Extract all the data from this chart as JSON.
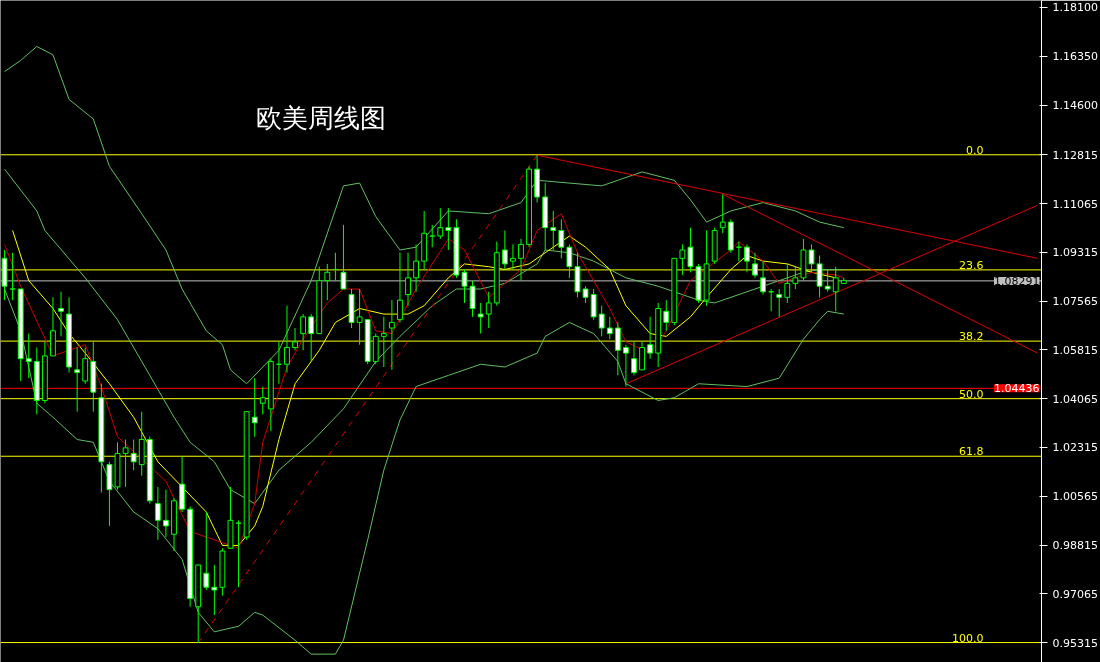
{
  "chart_data": {
    "type": "candlestick",
    "title": "欧美周线图",
    "color": "#00ff00",
    "categories": [
      null,
      null,
      null,
      null,
      null,
      null,
      null,
      null,
      null,
      null,
      null,
      null,
      null,
      null,
      null,
      null,
      null,
      null,
      null,
      null,
      null,
      null,
      null,
      null,
      null,
      null,
      null,
      null,
      null,
      null,
      null,
      null,
      null,
      null,
      null,
      null,
      null,
      null,
      null,
      null,
      null,
      null,
      null,
      null,
      null,
      null,
      null,
      null,
      null,
      null,
      null,
      null,
      null,
      null,
      null,
      null,
      null,
      null,
      null,
      null,
      null,
      null,
      null,
      null,
      null,
      null,
      null,
      null,
      null,
      null,
      null,
      null,
      null,
      null,
      null,
      null,
      null,
      null,
      null,
      null,
      null,
      null,
      null,
      null,
      null,
      null,
      null,
      null,
      null,
      null,
      null,
      null,
      null,
      null,
      null,
      null,
      null,
      null,
      null,
      null,
      null,
      null,
      null,
      null,
      null,
      null,
      null,
      null,
      null,
      null,
      null,
      null,
      null,
      null,
      null,
      null,
      null,
      null,
      null,
      null,
      null,
      null,
      null,
      null,
      null,
      null,
      null,
      null,
      null
    ],
    "ohlc": [
      [
        1.091,
        1.094,
        1.076,
        1.081
      ],
      [
        1.08,
        1.093,
        1.076,
        1.08
      ],
      [
        1.08,
        1.08,
        1.047,
        1.055
      ],
      [
        1.055,
        1.064,
        1.048,
        1.054
      ],
      [
        1.054,
        1.059,
        1.035,
        1.04
      ],
      [
        1.04,
        1.061,
        1.039,
        1.056
      ],
      [
        1.056,
        1.077,
        1.056,
        1.065
      ],
      [
        1.073,
        1.079,
        1.063,
        1.072
      ],
      [
        1.071,
        1.077,
        1.05,
        1.052
      ],
      [
        1.051,
        1.059,
        1.036,
        1.05
      ],
      [
        1.047,
        1.059,
        1.046,
        1.055
      ],
      [
        1.054,
        1.061,
        1.036,
        1.043
      ],
      [
        1.041,
        1.046,
        1.007,
        1.018
      ],
      [
        1.017,
        1.018,
        0.995,
        1.008
      ],
      [
        1.009,
        1.025,
        1.008,
        1.021
      ],
      [
        1.021,
        1.026,
        1.009,
        1.023
      ],
      [
        1.021,
        1.026,
        1.015,
        1.018
      ],
      [
        1.017,
        1.036,
        1.013,
        1.026
      ],
      [
        1.026,
        1.027,
        1.003,
        1.004
      ],
      [
        1.003,
        1.009,
        0.99,
        0.997
      ],
      [
        0.997,
        1.008,
        0.991,
        0.995
      ],
      [
        0.992,
        1.005,
        0.986,
        1.004
      ],
      [
        1.01,
        1.02,
        1.0,
        1.001
      ],
      [
        1.001,
        1.002,
        0.966,
        0.969
      ],
      [
        0.966,
        0.981,
        0.953,
        0.981
      ],
      [
        0.978,
        1.0,
        0.972,
        0.973
      ],
      [
        0.973,
        0.981,
        0.963,
        0.972
      ],
      [
        0.973,
        0.987,
        0.97,
        0.986
      ],
      [
        0.987,
        1.009,
        0.987,
        0.997
      ],
      [
        0.996,
        0.997,
        0.973,
        0.996
      ],
      [
        0.991,
        1.036,
        0.99,
        1.036
      ],
      [
        1.034,
        1.048,
        1.027,
        1.032
      ],
      [
        1.039,
        1.045,
        1.035,
        1.041
      ],
      [
        1.037,
        1.055,
        1.029,
        1.054
      ],
      [
        1.053,
        1.061,
        1.046,
        1.053
      ],
      [
        1.053,
        1.074,
        1.05,
        1.059
      ],
      [
        1.059,
        1.066,
        1.058,
        1.061
      ],
      [
        1.064,
        1.071,
        1.058,
        1.07
      ],
      [
        1.07,
        1.071,
        1.054,
        1.064
      ],
      [
        1.064,
        1.088,
        1.064,
        1.083
      ],
      [
        1.083,
        1.089,
        1.076,
        1.086
      ],
      [
        1.087,
        1.093,
        1.083,
        1.087
      ],
      [
        1.086,
        1.103,
        1.08,
        1.08
      ],
      [
        1.078,
        1.08,
        1.066,
        1.068
      ],
      [
        1.068,
        1.08,
        1.06,
        1.07
      ],
      [
        1.069,
        1.069,
        1.053,
        1.054
      ],
      [
        1.054,
        1.064,
        1.053,
        1.063
      ],
      [
        1.063,
        1.07,
        1.052,
        1.064
      ],
      [
        1.066,
        1.076,
        1.051,
        1.068
      ],
      [
        1.069,
        1.093,
        1.068,
        1.076
      ],
      [
        1.078,
        1.093,
        1.074,
        1.084
      ],
      [
        1.084,
        1.096,
        1.079,
        1.09
      ],
      [
        1.09,
        1.108,
        1.087,
        1.1
      ],
      [
        1.099,
        1.103,
        1.095,
        1.099
      ],
      [
        1.099,
        1.109,
        1.098,
        1.102
      ],
      [
        1.102,
        1.109,
        1.094,
        1.101
      ],
      [
        1.102,
        1.105,
        1.084,
        1.085
      ],
      [
        1.086,
        1.087,
        1.075,
        1.081
      ],
      [
        1.081,
        1.083,
        1.07,
        1.073
      ],
      [
        1.071,
        1.075,
        1.064,
        1.07
      ],
      [
        1.071,
        1.079,
        1.066,
        1.075
      ],
      [
        1.075,
        1.097,
        1.074,
        1.093
      ],
      [
        1.094,
        1.101,
        1.087,
        1.089
      ],
      [
        1.09,
        1.096,
        1.087,
        1.091
      ],
      [
        1.091,
        1.098,
        1.083,
        1.096
      ],
      [
        1.096,
        1.124,
        1.095,
        1.123
      ],
      [
        1.123,
        1.128,
        1.111,
        1.113
      ],
      [
        1.113,
        1.118,
        1.094,
        1.102
      ],
      [
        1.102,
        1.108,
        1.094,
        1.101
      ],
      [
        1.101,
        1.105,
        1.091,
        1.095
      ],
      [
        1.095,
        1.096,
        1.084,
        1.088
      ],
      [
        1.088,
        1.093,
        1.077,
        1.079
      ],
      [
        1.08,
        1.081,
        1.075,
        1.077
      ],
      [
        1.078,
        1.08,
        1.069,
        1.07
      ],
      [
        1.071,
        1.074,
        1.063,
        1.066
      ],
      [
        1.066,
        1.07,
        1.062,
        1.064
      ],
      [
        1.066,
        1.068,
        1.049,
        1.058
      ],
      [
        1.059,
        1.06,
        1.045,
        1.057
      ],
      [
        1.055,
        1.061,
        1.049,
        1.05
      ],
      [
        1.051,
        1.061,
        1.051,
        1.059
      ],
      [
        1.06,
        1.07,
        1.055,
        1.057
      ],
      [
        1.057,
        1.075,
        1.052,
        1.073
      ],
      [
        1.072,
        1.076,
        1.065,
        1.068
      ],
      [
        1.068,
        1.091,
        1.067,
        1.091
      ],
      [
        1.091,
        1.096,
        1.085,
        1.094
      ],
      [
        1.095,
        1.102,
        1.086,
        1.088
      ],
      [
        1.088,
        1.089,
        1.075,
        1.076
      ],
      [
        1.076,
        1.101,
        1.074,
        1.089
      ],
      [
        1.09,
        1.102,
        1.089,
        1.101
      ],
      [
        1.102,
        1.114,
        1.1,
        1.104
      ],
      [
        1.104,
        1.105,
        1.093,
        1.094
      ],
      [
        1.095,
        1.097,
        1.09,
        1.095
      ],
      [
        1.095,
        1.096,
        1.086,
        1.09
      ],
      [
        1.089,
        1.093,
        1.084,
        1.085
      ],
      [
        1.084,
        1.09,
        1.078,
        1.079
      ],
      [
        1.079,
        1.08,
        1.072,
        1.079
      ],
      [
        1.078,
        1.08,
        1.07,
        1.077
      ],
      [
        1.077,
        1.089,
        1.075,
        1.082
      ],
      [
        1.082,
        1.088,
        1.08,
        1.084
      ],
      [
        1.084,
        1.098,
        1.083,
        1.094
      ],
      [
        1.094,
        1.096,
        1.086,
        1.089
      ],
      [
        1.089,
        1.092,
        1.077,
        1.081
      ],
      [
        1.081,
        1.087,
        1.079,
        1.08
      ],
      [
        1.079,
        1.088,
        1.072,
        1.084
      ],
      [
        1.082,
        1.084,
        1.082,
        1.083
      ],
      null,
      null,
      null,
      null,
      null,
      null,
      null,
      null,
      null,
      null,
      null,
      null,
      null,
      null,
      null,
      null,
      null,
      null,
      null,
      null,
      null,
      null,
      null,
      null
    ],
    "series": [
      {
        "type": "line",
        "color": "#5fbf5f",
        "values": [
          1.158,
          null,
          1.162,
          null,
          1.167,
          null,
          1.164,
          null,
          1.148,
          null,
          null,
          1.141,
          null,
          1.124,
          null,
          null,
          null,
          1.107,
          null,
          null,
          1.094,
          null,
          1.08,
          null,
          null,
          1.065,
          null,
          1.06,
          1.051,
          null,
          1.046,
          null,
          null,
          null,
          1.058,
          null,
          null,
          null,
          1.083,
          null,
          null,
          null,
          1.117,
          null,
          1.118,
          null,
          1.106,
          null,
          null,
          1.094,
          null,
          1.095,
          null,
          null,
          null,
          1.108,
          null,
          null,
          null,
          null,
          1.107,
          null,
          null,
          null,
          1.111,
          null,
          1.119,
          null,
          null,
          null,
          null,
          null,
          null,
          null,
          1.117,
          null,
          null,
          null,
          null,
          1.122,
          null,
          null,
          null,
          1.119,
          null,
          1.112,
          null,
          1.104,
          null,
          null,
          1.108,
          null,
          null,
          null,
          1.111,
          null,
          null,
          null,
          1.108,
          null,
          null,
          1.104,
          null,
          null,
          1.102,
          null,
          null,
          null,
          null,
          null,
          null,
          null,
          null,
          null,
          null,
          null,
          null,
          null,
          null,
          null,
          null,
          null,
          null,
          null,
          null,
          null,
          null,
          null,
          null
        ]
      },
      {
        "type": "line",
        "color": "#5fbf5f",
        "values": [
          1.123,
          null,
          null,
          null,
          1.108,
          1.101,
          null,
          null,
          null,
          null,
          1.084,
          null,
          null,
          null,
          1.069,
          null,
          null,
          1.054,
          null,
          null,
          null,
          1.034,
          null,
          1.025,
          null,
          null,
          1.018,
          null,
          1.008,
          null,
          null,
          1.003,
          null,
          null,
          1.015,
          null,
          null,
          null,
          1.025,
          null,
          null,
          null,
          1.037,
          null,
          null,
          null,
          1.054,
          null,
          null,
          1.063,
          null,
          null,
          null,
          1.074,
          null,
          null,
          1.08,
          null,
          null,
          1.08,
          null,
          null,
          1.082,
          null,
          null,
          null,
          1.089,
          1.094,
          null,
          null,
          1.093,
          null,
          null,
          1.09,
          null,
          null,
          null,
          1.084,
          null,
          null,
          null,
          1.081,
          null,
          null,
          null,
          null,
          1.076,
          null,
          1.075,
          null,
          null,
          null,
          1.079,
          null,
          null,
          null,
          1.083,
          null,
          null,
          1.086,
          null,
          1.087,
          null,
          null,
          1.087,
          null,
          null,
          null,
          null,
          null,
          null,
          null,
          null,
          null,
          null,
          null,
          null,
          null,
          null,
          null,
          null,
          null,
          null,
          null,
          null,
          null,
          null,
          null,
          null
        ]
      },
      {
        "type": "line",
        "color": "#5fbf5f",
        "values": [
          1.08,
          null,
          1.065,
          null,
          1.039,
          null,
          1.034,
          null,
          null,
          1.026,
          null,
          1.025,
          null,
          1.011,
          null,
          null,
          1.0,
          null,
          null,
          0.994,
          null,
          null,
          0.983,
          null,
          0.964,
          null,
          0.957,
          null,
          null,
          0.959,
          null,
          0.964,
          0.963,
          null,
          null,
          null,
          0.954,
          null,
          0.949,
          null,
          null,
          0.949,
          0.954,
          null,
          null,
          0.99,
          null,
          1.015,
          null,
          1.033,
          null,
          1.045,
          null,
          null,
          null,
          1.049,
          null,
          null,
          null,
          1.053,
          null,
          null,
          1.052,
          null,
          null,
          null,
          1.057,
          1.063,
          null,
          null,
          1.068,
          null,
          null,
          1.064,
          null,
          null,
          1.054,
          1.046,
          null,
          null,
          null,
          1.04,
          null,
          1.041,
          null,
          null,
          1.046,
          null,
          null,
          null,
          null,
          null,
          1.045,
          null,
          null,
          null,
          1.048,
          null,
          null,
          1.062,
          null,
          1.069,
          1.072,
          null,
          1.071,
          null,
          null,
          null,
          null,
          null,
          null,
          null,
          null,
          null,
          null,
          null,
          null,
          null,
          null,
          null,
          null,
          null,
          null,
          null,
          null,
          null,
          null,
          null,
          null
        ]
      },
      {
        "type": "line",
        "color": "#ffff00",
        "values": [
          null,
          1.101,
          null,
          1.083,
          null,
          null,
          1.073,
          null,
          1.064,
          null,
          1.057,
          null,
          null,
          1.046,
          null,
          null,
          1.034,
          null,
          null,
          1.018,
          null,
          null,
          1.009,
          null,
          null,
          1.0,
          null,
          0.988,
          null,
          0.988,
          null,
          0.995,
          1.002,
          null,
          1.026,
          null,
          1.046,
          null,
          null,
          1.058,
          null,
          1.068,
          null,
          null,
          1.073,
          null,
          null,
          1.071,
          null,
          null,
          1.071,
          null,
          1.074,
          null,
          null,
          1.084,
          null,
          1.089,
          null,
          null,
          1.088,
          null,
          1.087,
          null,
          null,
          1.089,
          null,
          1.093,
          null,
          null,
          1.099,
          null,
          1.095,
          null,
          null,
          1.087,
          null,
          1.074,
          null,
          null,
          1.064,
          null,
          1.063,
          null,
          null,
          1.07,
          null,
          1.077,
          null,
          null,
          1.087,
          null,
          1.092,
          null,
          1.09,
          null,
          null,
          1.089,
          null,
          null,
          1.086,
          null,
          null,
          1.084,
          null,
          null,
          null,
          null,
          null,
          null,
          null,
          null,
          null,
          null,
          null,
          null,
          null,
          null,
          null,
          null,
          null,
          null,
          null,
          null,
          null,
          null,
          null,
          null,
          null
        ]
      },
      {
        "type": "line",
        "color": "#cc0000",
        "values": [
          1.096,
          null,
          1.081,
          null,
          null,
          null,
          1.056,
          null,
          null,
          null,
          1.06,
          null,
          1.045,
          null,
          1.027,
          null,
          null,
          1.019,
          null,
          null,
          1.011,
          null,
          null,
          0.993,
          null,
          null,
          null,
          null,
          null,
          0.987,
          null,
          1.003,
          1.025,
          null,
          null,
          1.052,
          null,
          1.062,
          null,
          null,
          1.075,
          null,
          1.08,
          null,
          1.08,
          null,
          1.065,
          null,
          1.064,
          null,
          null,
          1.08,
          null,
          null,
          null,
          1.098,
          null,
          1.094,
          null,
          null,
          1.077,
          null,
          1.082,
          null,
          1.087,
          null,
          1.101,
          null,
          null,
          1.107,
          null,
          1.093,
          null,
          null,
          null,
          1.073,
          null,
          1.061,
          null,
          null,
          1.057,
          null,
          1.065,
          null,
          null,
          1.083,
          null,
          null,
          null,
          null,
          1.094,
          1.097,
          null,
          null,
          1.09,
          null,
          1.082,
          null,
          null,
          null,
          1.086,
          null,
          null,
          1.085,
          1.084,
          null,
          null,
          null,
          null,
          null,
          null,
          null,
          null,
          null,
          null,
          null,
          null,
          null,
          null,
          null,
          null,
          null,
          null,
          null,
          null,
          null,
          null,
          null,
          null
        ]
      },
      {
        "type": "line",
        "color": "#dd0000",
        "line_style": "dashed",
        "values": [
          null,
          null,
          null,
          null,
          null,
          null,
          null,
          null,
          null,
          null,
          null,
          null,
          null,
          null,
          null,
          null,
          null,
          null,
          null,
          null,
          null,
          null,
          null,
          null,
          0.953,
          null,
          null,
          null,
          null,
          null,
          null,
          null,
          null,
          null,
          null,
          null,
          null,
          null,
          null,
          null,
          null,
          null,
          null,
          null,
          null,
          null,
          null,
          null,
          null,
          null,
          null,
          null,
          null,
          null,
          null,
          null,
          null,
          null,
          null,
          null,
          null,
          null,
          null,
          null,
          null,
          null,
          1.128,
          null,
          null,
          null,
          null,
          null,
          null,
          null,
          null,
          null,
          null,
          null,
          null,
          null,
          null,
          null,
          null,
          null,
          null,
          null,
          null,
          null,
          null,
          null,
          null,
          null,
          null,
          null,
          null,
          null,
          null,
          null,
          null,
          null,
          null,
          null,
          null,
          null,
          null,
          null,
          null,
          null,
          null,
          null,
          null,
          null,
          null,
          null,
          null,
          null,
          null,
          null,
          null,
          null,
          null,
          null,
          null,
          null,
          null,
          null,
          null,
          null,
          null
        ]
      },
      {
        "type": "line",
        "color": "#dd0000",
        "values": [
          null,
          null,
          null,
          null,
          null,
          null,
          null,
          null,
          null,
          null,
          null,
          null,
          null,
          null,
          null,
          null,
          null,
          null,
          null,
          null,
          null,
          null,
          null,
          null,
          null,
          null,
          null,
          null,
          null,
          null,
          null,
          null,
          null,
          null,
          null,
          null,
          null,
          null,
          null,
          null,
          null,
          null,
          null,
          null,
          null,
          null,
          null,
          null,
          null,
          null,
          null,
          null,
          null,
          null,
          null,
          null,
          null,
          null,
          null,
          null,
          null,
          null,
          null,
          null,
          null,
          null,
          1.128,
          null,
          null,
          null,
          null,
          null,
          null,
          null,
          null,
          null,
          null,
          null,
          null,
          null,
          null,
          null,
          null,
          null,
          null,
          null,
          null,
          null,
          null,
          null,
          null,
          null,
          null,
          null,
          null,
          null,
          null,
          null,
          null,
          null,
          null,
          null,
          null,
          null,
          null,
          null,
          null,
          null,
          null,
          null,
          null,
          null,
          null,
          null,
          null,
          null,
          null,
          null,
          null,
          null,
          null,
          null,
          null,
          null,
          null,
          null,
          null,
          null,
          1.091
        ]
      },
      {
        "type": "line",
        "color": "#dd0000",
        "values": [
          null,
          null,
          null,
          null,
          null,
          null,
          null,
          null,
          null,
          null,
          null,
          null,
          null,
          null,
          null,
          null,
          null,
          null,
          null,
          null,
          null,
          null,
          null,
          null,
          null,
          null,
          null,
          null,
          null,
          null,
          null,
          null,
          null,
          null,
          null,
          null,
          null,
          null,
          null,
          null,
          null,
          null,
          null,
          null,
          null,
          null,
          null,
          null,
          null,
          null,
          null,
          null,
          null,
          null,
          null,
          null,
          null,
          null,
          null,
          null,
          null,
          null,
          null,
          null,
          null,
          null,
          null,
          null,
          null,
          null,
          null,
          null,
          null,
          null,
          null,
          null,
          null,
          null,
          null,
          null,
          null,
          null,
          null,
          null,
          null,
          null,
          null,
          null,
          null,
          1.114,
          null,
          null,
          null,
          null,
          null,
          null,
          null,
          null,
          null,
          null,
          null,
          null,
          null,
          null,
          null,
          null,
          null,
          null,
          null,
          null,
          null,
          null,
          null,
          null,
          null,
          null,
          null,
          null,
          null,
          null,
          null,
          null,
          null,
          null,
          null,
          null,
          null,
          null,
          1.057
        ]
      },
      {
        "type": "line",
        "color": "#dd0000",
        "values": [
          null,
          null,
          null,
          null,
          null,
          null,
          null,
          null,
          null,
          null,
          null,
          null,
          null,
          null,
          null,
          null,
          null,
          null,
          null,
          null,
          null,
          null,
          null,
          null,
          null,
          null,
          null,
          null,
          null,
          null,
          null,
          null,
          null,
          null,
          null,
          null,
          null,
          null,
          null,
          null,
          null,
          null,
          null,
          null,
          null,
          null,
          null,
          null,
          null,
          null,
          null,
          null,
          null,
          null,
          null,
          null,
          null,
          null,
          null,
          null,
          null,
          null,
          null,
          null,
          null,
          null,
          null,
          null,
          null,
          null,
          null,
          null,
          null,
          null,
          null,
          null,
          null,
          1.046,
          null,
          null,
          null,
          null,
          null,
          null,
          null,
          null,
          null,
          null,
          null,
          null,
          null,
          null,
          null,
          null,
          null,
          null,
          null,
          null,
          null,
          null,
          null,
          null,
          null,
          null,
          null,
          null,
          null,
          null,
          null,
          null,
          null,
          null,
          null,
          null,
          null,
          null,
          null,
          null,
          null,
          null,
          null,
          null,
          null,
          null,
          null,
          null,
          null,
          null,
          1.11
        ]
      }
    ],
    "ylim": [
      0.946,
      1.1835
    ],
    "yticks": [
      {
        "value": 1.181,
        "label": "1.18100"
      },
      {
        "value": 1.1635,
        "label": "1.16350"
      },
      {
        "value": 1.146,
        "label": "1.14600"
      },
      {
        "value": 1.12815,
        "label": "1.12815"
      },
      {
        "value": 1.11065,
        "label": "1.11065"
      },
      {
        "value": 1.09315,
        "label": "1.09315"
      },
      {
        "value": 1.07565,
        "label": "1.07565"
      },
      {
        "value": 1.05815,
        "label": "1.05815"
      },
      {
        "value": 1.04065,
        "label": "1.04065"
      },
      {
        "value": 1.02315,
        "label": "1.02315"
      },
      {
        "value": 1.00565,
        "label": "1.00565"
      },
      {
        "value": 0.98815,
        "label": "0.98815"
      },
      {
        "value": 0.97065,
        "label": "0.97065"
      },
      {
        "value": 0.95315,
        "label": "0.95315"
      }
    ],
    "tick_labels": "y",
    "grid": false,
    "ref_lines": [
      {
        "axis": "y",
        "value": 1.12815,
        "color": "#ffff00"
      },
      {
        "axis": "y",
        "value": 1.08685,
        "color": "#ffff00"
      },
      {
        "axis": "y",
        "value": 1.0613,
        "color": "#ffff00"
      },
      {
        "axis": "y",
        "value": 1.04065,
        "color": "#ffff00"
      },
      {
        "axis": "y",
        "value": 1.02,
        "color": "#ffff00"
      },
      {
        "axis": "y",
        "value": 0.95315,
        "color": "#ffff00"
      },
      {
        "axis": "y",
        "value": 1.08291,
        "color": "#c0c0c0",
        "label": "1.08291"
      },
      {
        "axis": "y",
        "value": 1.04436,
        "color": "#ff0000",
        "label": "1.04436"
      }
    ],
    "annotations": [
      {
        "text": "0.0",
        "y": 1.12815
      },
      {
        "text": "23.6",
        "y": 1.08685
      },
      {
        "text": "38.2",
        "y": 1.0613
      },
      {
        "text": "50.0",
        "y": 1.04065
      },
      {
        "text": "61.8",
        "y": 1.02
      },
      {
        "text": "100.0",
        "y": 0.95315
      }
    ]
  }
}
